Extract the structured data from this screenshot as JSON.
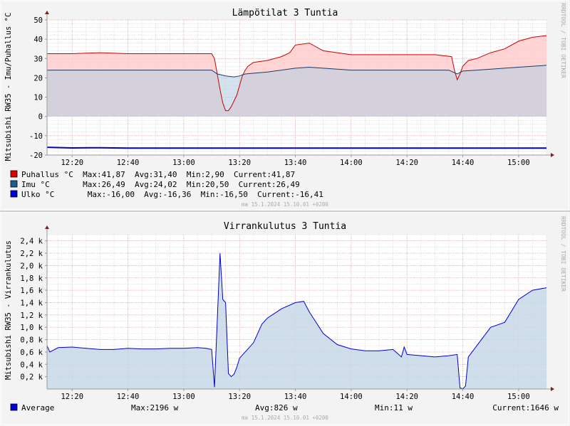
{
  "colors": {
    "background": "#f3f3f3",
    "canvas": "#ffffff",
    "grid_major": "#e8a0a0",
    "grid_minor": "#d4d4d4",
    "axis": "#999999",
    "arrow": "#8b1a1a",
    "text": "#000000",
    "side_text": "#aaaaaa",
    "stamp": "#aaaaaa"
  },
  "side_label": "RRDTOOL / TOBI OETIKER",
  "chart_data": [
    {
      "type": "area",
      "title": "Lämpötilat 3 Tuntia",
      "ylabel": "Mitsubishi RW35 - Imu/Puhallus °C",
      "xlim": [
        "12:11",
        "15:10"
      ],
      "ylim": [
        -20,
        50
      ],
      "y_ticks": [
        {
          "v": -20,
          "label": "-20"
        },
        {
          "v": -10,
          "label": "-10"
        },
        {
          "v": 0,
          "label": "0"
        },
        {
          "v": 10,
          "label": "10"
        },
        {
          "v": 20,
          "label": "20"
        },
        {
          "v": 30,
          "label": "30"
        },
        {
          "v": 40,
          "label": "40"
        },
        {
          "v": 50,
          "label": "50"
        }
      ],
      "y_minor_step": 2,
      "x_ticks": [
        "12:20",
        "12:40",
        "13:00",
        "13:20",
        "13:40",
        "14:00",
        "14:20",
        "14:40",
        "15:00"
      ],
      "x_minor_step_min": 5,
      "grid": true,
      "series": [
        {
          "name": "Puhallus °C",
          "color": "#cc0000",
          "fill": "#ffcccc",
          "fill_opacity": 0.85,
          "x": [
            "12:11",
            "12:20",
            "12:30",
            "12:40",
            "12:50",
            "13:00",
            "13:10",
            "13:11",
            "13:12",
            "13:13",
            "13:14",
            "13:15",
            "13:16",
            "13:17",
            "13:18",
            "13:19",
            "13:20",
            "13:21",
            "13:22",
            "13:23",
            "13:25",
            "13:30",
            "13:35",
            "13:38",
            "13:40",
            "13:45",
            "13:50",
            "14:00",
            "14:10",
            "14:20",
            "14:30",
            "14:36",
            "14:37",
            "14:38",
            "14:39",
            "14:40",
            "14:42",
            "14:45",
            "14:50",
            "14:55",
            "15:00",
            "15:05",
            "15:10"
          ],
          "y": [
            32.5,
            32.5,
            33,
            32.5,
            32.5,
            32.5,
            32.5,
            30,
            22,
            14,
            7,
            3,
            3,
            5,
            8,
            11,
            16,
            21,
            24,
            26,
            28,
            29,
            31,
            33,
            37,
            38,
            34,
            32,
            32,
            32,
            32,
            31,
            24,
            19,
            22,
            26,
            29,
            30,
            33,
            35,
            39,
            41,
            41.9
          ]
        },
        {
          "name": "Imu °C",
          "color": "#1a3a6a",
          "fill": "#b8cfe2",
          "fill_opacity": 0.6,
          "x": [
            "12:11",
            "12:20",
            "12:30",
            "12:40",
            "12:50",
            "13:00",
            "13:10",
            "13:12",
            "13:15",
            "13:18",
            "13:20",
            "13:22",
            "13:30",
            "13:40",
            "13:45",
            "13:50",
            "14:00",
            "14:10",
            "14:20",
            "14:30",
            "14:35",
            "14:38",
            "14:40",
            "14:45",
            "14:50",
            "15:00",
            "15:10"
          ],
          "y": [
            24,
            24,
            24,
            24,
            24,
            24,
            24,
            22,
            21,
            20.5,
            21,
            22,
            23,
            25,
            25.5,
            25,
            24,
            24,
            24,
            24,
            24,
            22,
            23.5,
            24,
            24.5,
            25.5,
            26.5
          ]
        },
        {
          "name": "Ulko °C",
          "color": "#0000cc",
          "fill": null,
          "x": [
            "12:11",
            "12:20",
            "12:30",
            "12:40",
            "12:50",
            "13:00",
            "13:20",
            "13:40",
            "14:00",
            "14:20",
            "14:40",
            "15:00",
            "15:10"
          ],
          "y": [
            -16,
            -16.3,
            -16.2,
            -16.4,
            -16.4,
            -16.4,
            -16.4,
            -16.4,
            -16.4,
            -16.4,
            -16.4,
            -16.4,
            -16.4
          ]
        }
      ],
      "legend": [
        {
          "swatch": "#dd0000",
          "text": "Puhallus °C  Max:41,87  Avg:31,40  Min:2,90  Current:41,87"
        },
        {
          "swatch": "#1a5f8a",
          "text": "Imu °C       Max:26,49  Avg:24,02  Min:20,50  Current:26,49"
        },
        {
          "swatch": "#0000dd",
          "text": "Ulko °C       Max:-16,00  Avg:-16,36  Min:-16,50  Current:-16,41"
        }
      ],
      "stamp": "ma 15.1.2024 15.10.01 +0200"
    },
    {
      "type": "area",
      "title": "Virrankulutus 3 Tuntia",
      "ylabel": "Mitsubishi RW35 - Virrankulutus",
      "xlim": [
        "12:11",
        "15:10"
      ],
      "ylim": [
        0,
        2500
      ],
      "y_ticks": [
        {
          "v": 200,
          "label": "0,2 k"
        },
        {
          "v": 400,
          "label": "0,4 k"
        },
        {
          "v": 600,
          "label": "0,6 k"
        },
        {
          "v": 800,
          "label": "0,8 k"
        },
        {
          "v": 1000,
          "label": "1,0 k"
        },
        {
          "v": 1200,
          "label": "1,2 k"
        },
        {
          "v": 1400,
          "label": "1,4 k"
        },
        {
          "v": 1600,
          "label": "1,6 k"
        },
        {
          "v": 1800,
          "label": "1,8 k"
        },
        {
          "v": 2000,
          "label": "2,0 k"
        },
        {
          "v": 2200,
          "label": "2,2 k"
        },
        {
          "v": 2400,
          "label": "2,4 k"
        }
      ],
      "y_minor_step": 100,
      "x_ticks": [
        "12:20",
        "12:40",
        "13:00",
        "13:20",
        "13:40",
        "14:00",
        "14:20",
        "14:40",
        "15:00"
      ],
      "x_minor_step_min": 5,
      "grid": true,
      "series": [
        {
          "name": "Average",
          "color": "#0000cc",
          "fill": "#c8d7e8",
          "fill_opacity": 0.85,
          "x": [
            "12:11",
            "12:12",
            "12:15",
            "12:20",
            "12:25",
            "12:30",
            "12:35",
            "12:40",
            "12:45",
            "12:50",
            "12:55",
            "13:00",
            "13:05",
            "13:08",
            "13:10",
            "13:11",
            "13:12",
            "13:13",
            "13:14",
            "13:15",
            "13:16",
            "13:17",
            "13:18",
            "13:19",
            "13:20",
            "13:22",
            "13:25",
            "13:28",
            "13:30",
            "13:35",
            "13:40",
            "13:43",
            "13:45",
            "13:50",
            "13:55",
            "14:00",
            "14:05",
            "14:10",
            "14:15",
            "14:18",
            "14:19",
            "14:20",
            "14:25",
            "14:30",
            "14:35",
            "14:38",
            "14:39",
            "14:40",
            "14:41",
            "14:42",
            "14:45",
            "14:50",
            "14:55",
            "15:00",
            "15:05",
            "15:10"
          ],
          "y": [
            700,
            600,
            670,
            680,
            660,
            640,
            640,
            660,
            650,
            650,
            660,
            660,
            670,
            660,
            640,
            30,
            1100,
            2200,
            1450,
            1400,
            250,
            200,
            240,
            350,
            500,
            600,
            750,
            1050,
            1150,
            1300,
            1400,
            1420,
            1250,
            900,
            720,
            650,
            620,
            620,
            640,
            520,
            680,
            560,
            540,
            520,
            540,
            560,
            20,
            0,
            50,
            520,
            700,
            1000,
            1080,
            1450,
            1600,
            1640
          ]
        }
      ],
      "legend": [
        {
          "swatch": "#0000dd",
          "text": "Average"
        }
      ],
      "summary": [
        "Max:2196 w",
        "Avg:826 w",
        "Min:11 w",
        "Current:1646 w"
      ],
      "stamp": "ma 15.1.2024 15.10.01 +0200"
    }
  ]
}
